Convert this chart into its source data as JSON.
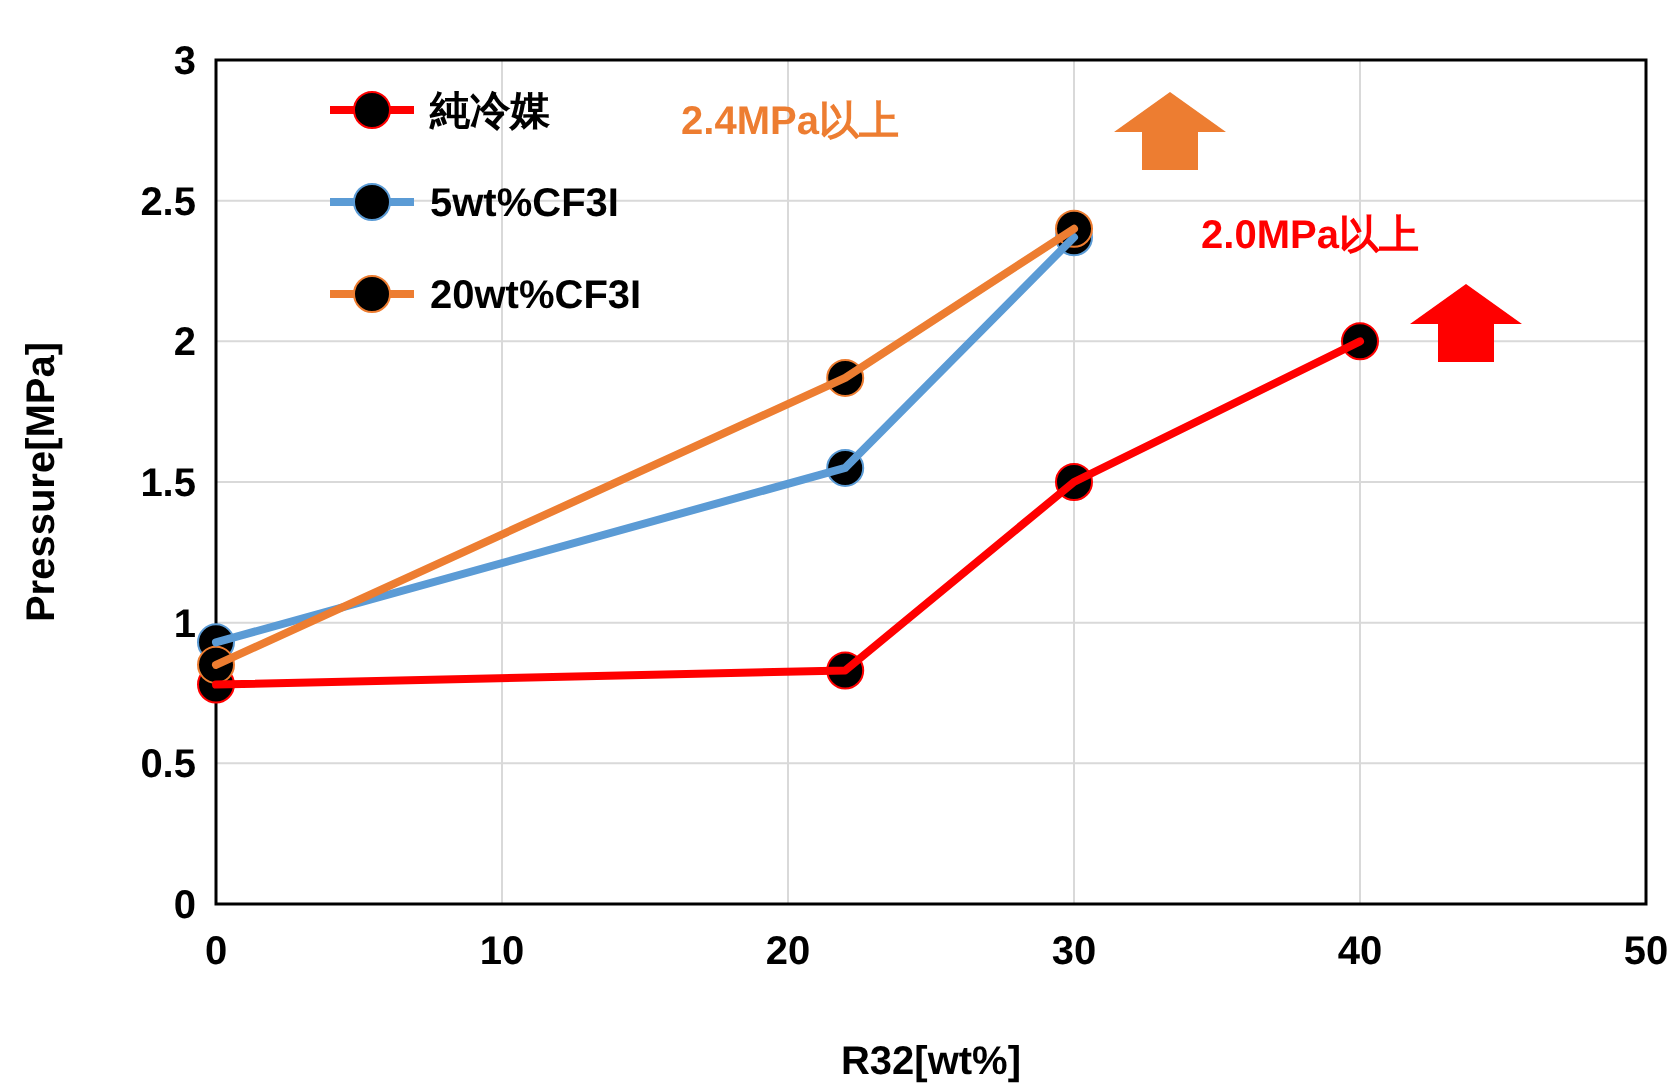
{
  "chart_data": {
    "type": "line",
    "xlabel": "R32[wt%]",
    "ylabel": "Pressure[MPa]",
    "xlim": [
      0,
      50
    ],
    "xticks": [
      0,
      10,
      20,
      30,
      40,
      50
    ],
    "ylim": [
      0,
      3
    ],
    "yticks": [
      0,
      0.5,
      1,
      1.5,
      2,
      2.5,
      3
    ],
    "grid": true,
    "legend": "top left",
    "marker": "circle",
    "line_style": "solid",
    "series": [
      {
        "name": "純冷媒",
        "color": "#ff0000",
        "x": [
          0,
          22,
          30,
          40
        ],
        "values": [
          0.78,
          0.83,
          1.5,
          2.0
        ]
      },
      {
        "name": "5wt%CF3I",
        "color": "#5b9bd5",
        "x": [
          0,
          22,
          30
        ],
        "values": [
          0.93,
          1.55,
          2.37
        ]
      },
      {
        "name": "20wt%CF3I",
        "color": "#ed7d31",
        "x": [
          0,
          22,
          30
        ],
        "values": [
          0.85,
          1.87,
          2.4
        ]
      }
    ],
    "annotations": [
      "2.4MPa以上",
      "2.0MPa以上"
    ]
  }
}
